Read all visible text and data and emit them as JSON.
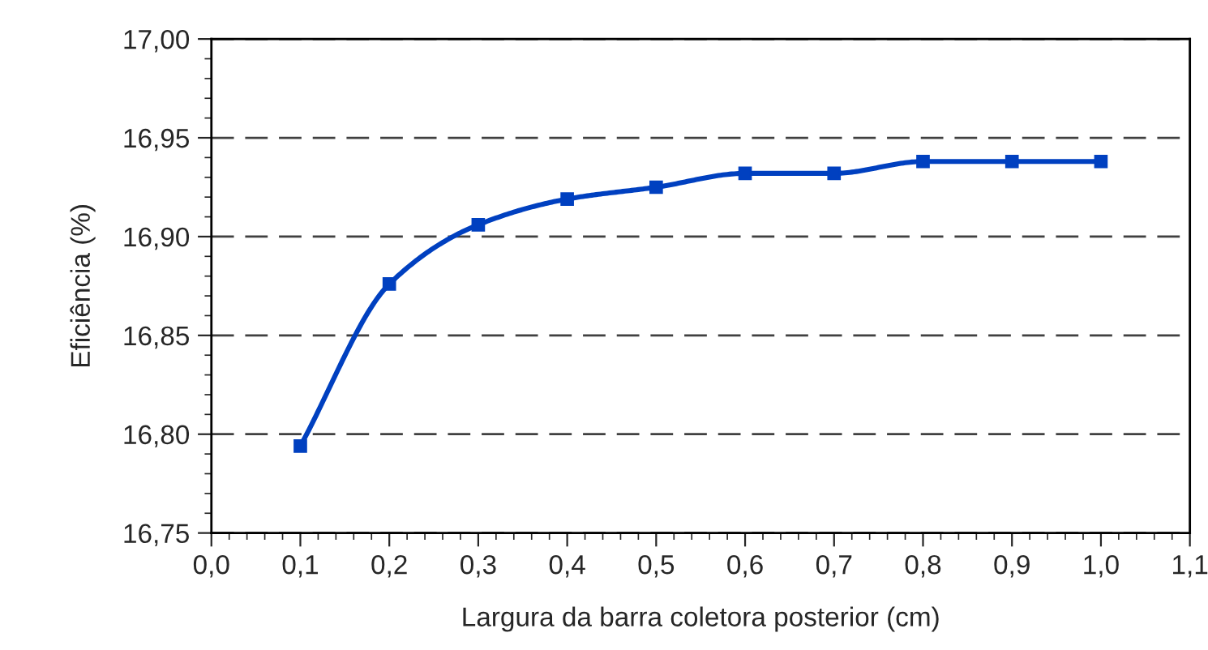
{
  "chart_data": {
    "type": "line",
    "xlabel": "Largura da barra coletora posterior (cm)",
    "ylabel": "Eficiência (%)",
    "x": [
      0.1,
      0.2,
      0.3,
      0.4,
      0.5,
      0.6,
      0.7,
      0.8,
      0.9,
      1.0
    ],
    "series": [
      {
        "color": "#0040c0",
        "values": [
          16.794,
          16.876,
          16.906,
          16.919,
          16.925,
          16.932,
          16.932,
          16.938,
          16.938,
          16.938
        ]
      }
    ],
    "marker": "square",
    "line_style": "solid",
    "grid": "y",
    "xlim": [
      0.0,
      1.1
    ],
    "ylim": [
      16.75,
      17.0
    ],
    "xticks": [
      {
        "value": 0.0,
        "label": "0,0"
      },
      {
        "value": 0.1,
        "label": "0,1"
      },
      {
        "value": 0.2,
        "label": "0,2"
      },
      {
        "value": 0.3,
        "label": "0,3"
      },
      {
        "value": 0.4,
        "label": "0,4"
      },
      {
        "value": 0.5,
        "label": "0,5"
      },
      {
        "value": 0.6,
        "label": "0,6"
      },
      {
        "value": 0.7,
        "label": "0,7"
      },
      {
        "value": 0.8,
        "label": "0,8"
      },
      {
        "value": 0.9,
        "label": "0,9"
      },
      {
        "value": 1.0,
        "label": "1,0"
      },
      {
        "value": 1.1,
        "label": "1,1"
      }
    ],
    "yticks": [
      {
        "value": 16.75,
        "label": "16,75"
      },
      {
        "value": 16.8,
        "label": "16,80"
      },
      {
        "value": 16.85,
        "label": "16,85"
      },
      {
        "value": 16.9,
        "label": "16,90"
      },
      {
        "value": 16.95,
        "label": "16,95"
      },
      {
        "value": 17.0,
        "label": "17,00"
      }
    ]
  }
}
